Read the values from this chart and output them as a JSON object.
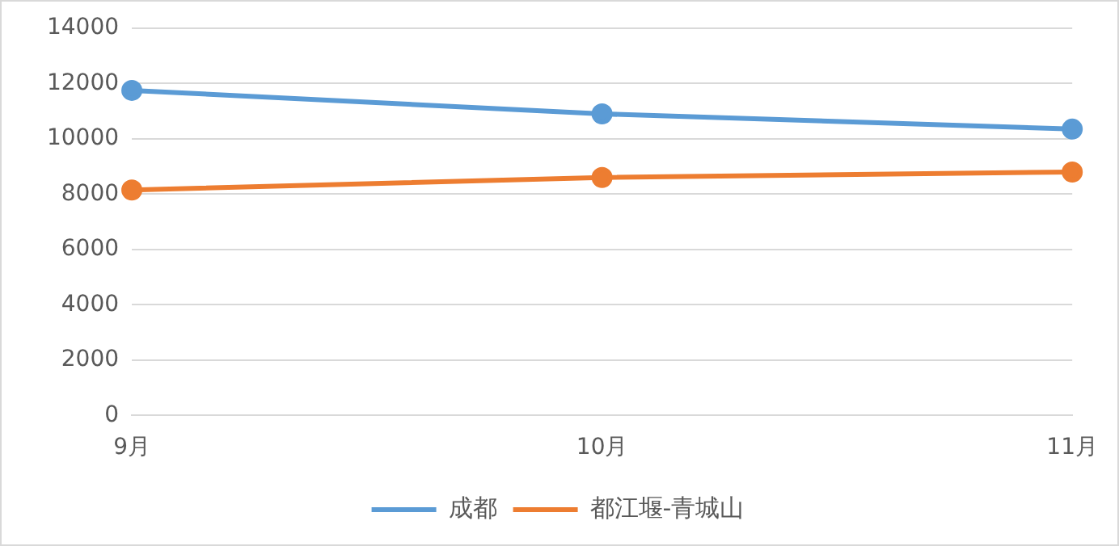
{
  "chart_data": {
    "type": "line",
    "categories": [
      "9月",
      "10月",
      "11月"
    ],
    "series": [
      {
        "name": "成都",
        "color": "#5b9bd5",
        "values": [
          11750,
          10900,
          10350
        ]
      },
      {
        "name": "都江堰-青城山",
        "color": "#ed7d31",
        "values": [
          8150,
          8600,
          8800
        ]
      }
    ],
    "ylim": [
      0,
      14000
    ],
    "yticks": [
      0,
      2000,
      4000,
      6000,
      8000,
      10000,
      12000,
      14000
    ],
    "grid": "y",
    "legend": "bottom",
    "marker": "circle",
    "line_style": "solid"
  }
}
